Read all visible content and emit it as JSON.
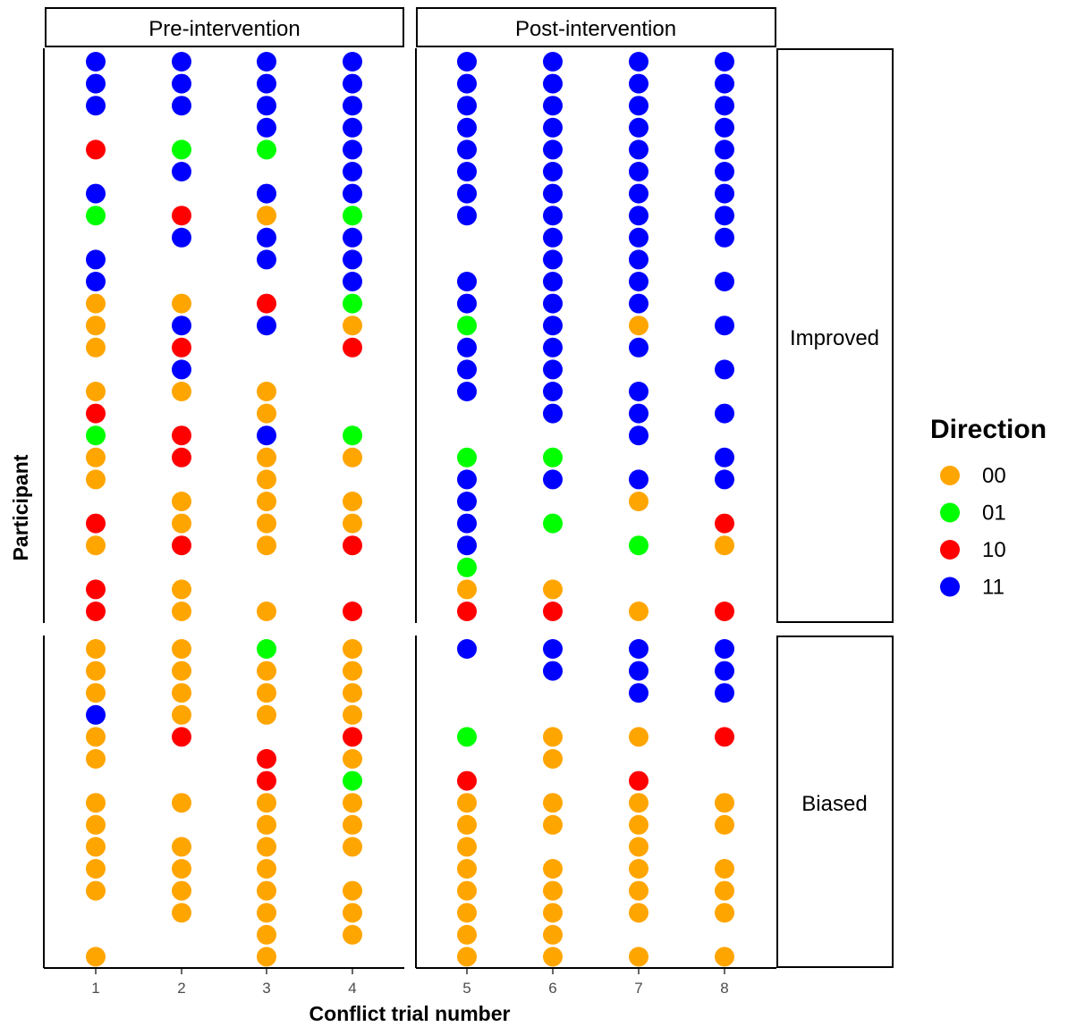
{
  "chart_data": {
    "type": "scatter",
    "xlabel": "Conflict trial number",
    "ylabel": "Participant",
    "facet_columns": [
      "Pre-intervention",
      "Post-intervention"
    ],
    "facet_rows": [
      "Improved",
      "Biased"
    ],
    "x_ticks": {
      "Pre-intervention": [
        "1",
        "2",
        "3",
        "4"
      ],
      "Post-intervention": [
        "5",
        "6",
        "7",
        "8"
      ]
    },
    "legend": {
      "title": "Direction",
      "position": "right",
      "entries": [
        {
          "label": "00",
          "color": "#FFA500"
        },
        {
          "label": "01",
          "color": "#00FF00"
        },
        {
          "label": "10",
          "color": "#FF0000"
        },
        {
          "label": "11",
          "color": "#0000FF"
        }
      ]
    },
    "grid": false,
    "y_note": "participant rows numbered from top of each row facet; Improved rows 1-26, Biased rows 1-15",
    "improved": {
      "1": [
        "11",
        "11",
        "11",
        null,
        "10",
        null,
        "11",
        "01",
        null,
        "11",
        "11",
        "00",
        "00",
        "00",
        null,
        "00",
        "10",
        "01",
        "00",
        "00",
        null,
        "10",
        "00",
        null,
        "10",
        "10"
      ],
      "2": [
        "11",
        "11",
        "11",
        null,
        "01",
        "11",
        null,
        "10",
        "11",
        null,
        null,
        "00",
        "11",
        "10",
        "11",
        "00",
        null,
        "10",
        "10",
        null,
        "00",
        "00",
        "10",
        null,
        "00",
        "00"
      ],
      "3": [
        "11",
        "11",
        "11",
        "11",
        "01",
        null,
        "11",
        "00",
        "11",
        "11",
        null,
        "10",
        "11",
        null,
        null,
        "00",
        "00",
        "11",
        "00",
        "00",
        "00",
        "00",
        "00",
        null,
        null,
        "00"
      ],
      "4": [
        "11",
        "11",
        "11",
        "11",
        "11",
        "11",
        "11",
        "01",
        "11",
        "11",
        "11",
        "01",
        "00",
        "10",
        null,
        null,
        null,
        "01",
        "00",
        null,
        "00",
        "00",
        "10",
        null,
        null,
        "10"
      ],
      "5": [
        "11",
        "11",
        "11",
        "11",
        "11",
        "11",
        "11",
        "11",
        null,
        null,
        "11",
        "11",
        "01",
        "11",
        "11",
        "11",
        null,
        null,
        "01",
        "11",
        "11",
        "11",
        "11",
        "01",
        "00",
        "10"
      ],
      "6": [
        "11",
        "11",
        "11",
        "11",
        "11",
        "11",
        "11",
        "11",
        "11",
        "11",
        "11",
        "11",
        "11",
        "11",
        "11",
        "11",
        "11",
        null,
        "01",
        "11",
        null,
        "01",
        null,
        null,
        "00",
        "10"
      ],
      "7": [
        "11",
        "11",
        "11",
        "11",
        "11",
        "11",
        "11",
        "11",
        "11",
        "11",
        "11",
        "11",
        "00",
        "11",
        null,
        "11",
        "11",
        "11",
        null,
        "11",
        "00",
        null,
        "01",
        null,
        null,
        "00"
      ],
      "8": [
        "11",
        "11",
        "11",
        "11",
        "11",
        "11",
        "11",
        "11",
        "11",
        null,
        "11",
        null,
        "11",
        null,
        "11",
        null,
        "11",
        null,
        "11",
        "11",
        null,
        "10",
        "00",
        null,
        null,
        "10"
      ]
    },
    "biased": {
      "1": [
        "00",
        "00",
        "00",
        "11",
        "00",
        "00",
        null,
        "00",
        "00",
        "00",
        "00",
        "00",
        null,
        null,
        "00"
      ],
      "2": [
        "00",
        "00",
        "00",
        "00",
        "10",
        null,
        null,
        "00",
        null,
        "00",
        "00",
        "00",
        "00",
        null,
        null
      ],
      "3": [
        "01",
        "00",
        "00",
        "00",
        null,
        "10",
        "10",
        "00",
        "00",
        "00",
        "00",
        "00",
        "00",
        "00",
        "00"
      ],
      "4": [
        "00",
        "00",
        "00",
        "00",
        "10",
        "00",
        "01",
        "00",
        "00",
        "00",
        null,
        "00",
        "00",
        "00",
        null
      ],
      "5": [
        "11",
        null,
        null,
        null,
        "01",
        null,
        "10",
        "00",
        "00",
        "00",
        "00",
        "00",
        "00",
        "00",
        "00"
      ],
      "6": [
        "11",
        "11",
        null,
        null,
        "00",
        "00",
        null,
        "00",
        "00",
        null,
        "00",
        "00",
        "00",
        "00",
        "00"
      ],
      "7": [
        "11",
        "11",
        "11",
        null,
        "00",
        null,
        "10",
        "00",
        "00",
        "00",
        "00",
        "00",
        "00",
        null,
        "00"
      ],
      "8": [
        "11",
        "11",
        "11",
        null,
        "10",
        null,
        null,
        "00",
        "00",
        null,
        "00",
        "00",
        "00",
        null,
        "00"
      ]
    }
  }
}
